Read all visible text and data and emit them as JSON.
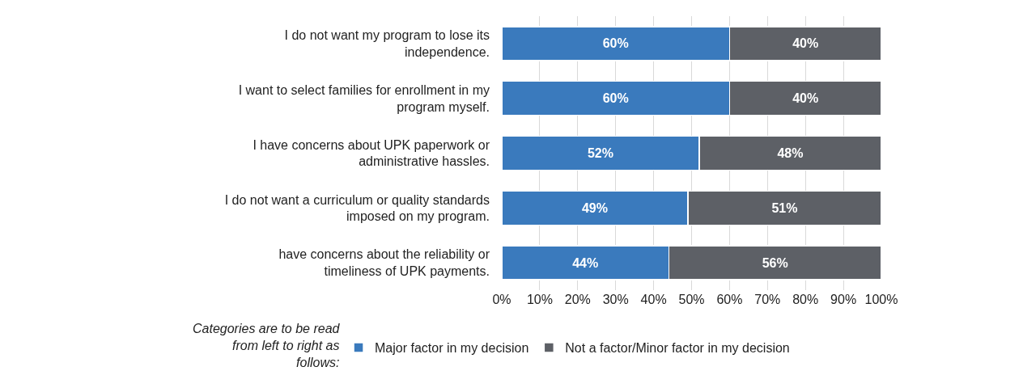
{
  "chart_data": {
    "type": "bar",
    "orientation": "horizontal",
    "stacked": true,
    "categories": [
      "I do not want my program to lose its independence.",
      "I want to select families for enrollment in my program myself.",
      "I have concerns about UPK paperwork or administrative hassles.",
      "I do not want a curriculum or quality standards imposed on my program.",
      "have concerns about the reliability or timeliness of UPK payments."
    ],
    "series": [
      {
        "name": "Major factor in my decision",
        "color": "#3a7abd",
        "values": [
          60,
          60,
          52,
          49,
          44
        ],
        "value_labels": [
          "60%",
          "60%",
          "52%",
          "49%",
          "44%"
        ]
      },
      {
        "name": "Not a factor/Minor factor in my decision",
        "color": "#5d6066",
        "values": [
          40,
          40,
          48,
          51,
          56
        ],
        "value_labels": [
          "40%",
          "40%",
          "48%",
          "51%",
          "56%"
        ]
      }
    ],
    "xlim": [
      0,
      100
    ],
    "xticks": [
      {
        "value": 0,
        "label": "0%"
      },
      {
        "value": 10,
        "label": "10%"
      },
      {
        "value": 20,
        "label": "20%"
      },
      {
        "value": 30,
        "label": "30%"
      },
      {
        "value": 40,
        "label": "40%"
      },
      {
        "value": 50,
        "label": "50%"
      },
      {
        "value": 60,
        "label": "60%"
      },
      {
        "value": 70,
        "label": "70%"
      },
      {
        "value": 80,
        "label": "80%"
      },
      {
        "value": 90,
        "label": "90%"
      },
      {
        "value": 100,
        "label": "100%"
      }
    ],
    "grid": "x",
    "legend": "bottom",
    "annotations": [
      "Categories are to be read from left to right as follows:"
    ]
  }
}
